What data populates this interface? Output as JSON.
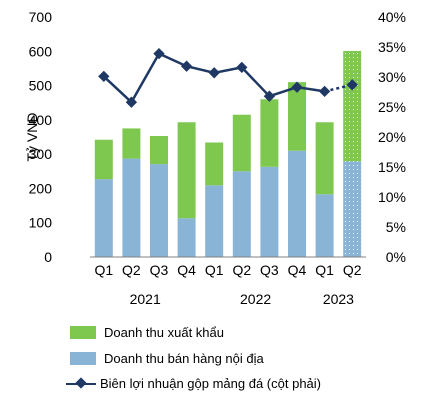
{
  "chart_data": {
    "type": "bar",
    "categories": [
      "Q1",
      "Q2",
      "Q3",
      "Q4",
      "Q1",
      "Q2",
      "Q3",
      "Q4",
      "Q1",
      "Q2"
    ],
    "years": [
      {
        "label": "2021",
        "from": 0,
        "to": 3
      },
      {
        "label": "2022",
        "from": 4,
        "to": 7
      },
      {
        "label": "2023",
        "from": 8,
        "to": 9
      }
    ],
    "ylabel": "Tỷ VNĐ",
    "ylim": [
      0,
      700
    ],
    "yticks": [
      "0",
      "100",
      "200",
      "300",
      "400",
      "500",
      "600",
      "700"
    ],
    "y2lim": [
      0,
      0.4
    ],
    "y2ticks": [
      "0%",
      "5%",
      "10%",
      "15%",
      "20%",
      "25%",
      "30%",
      "35%",
      "40%"
    ],
    "series": [
      {
        "name": "Doanh thu bán hàng nội địa",
        "kind": "bar",
        "color": "#8ab4d6",
        "values": [
          227,
          287,
          271,
          113,
          209,
          250,
          263,
          310,
          183,
          279
        ]
      },
      {
        "name": "Doanh thu xuất khẩu",
        "kind": "bar",
        "color": "#7ec850",
        "values": [
          115,
          88,
          82,
          280,
          125,
          165,
          197,
          200,
          210,
          322
        ]
      },
      {
        "name": "Biên lợi nhuận gộp mảng đá (cột phải)",
        "kind": "line",
        "axis": "right",
        "color": "#1f3864",
        "values": [
          0.301,
          0.258,
          0.339,
          0.318,
          0.307,
          0.316,
          0.268,
          0.283,
          0.276,
          0.287
        ]
      }
    ],
    "forecast_index": 9,
    "grid": false,
    "legend": "bottom"
  }
}
